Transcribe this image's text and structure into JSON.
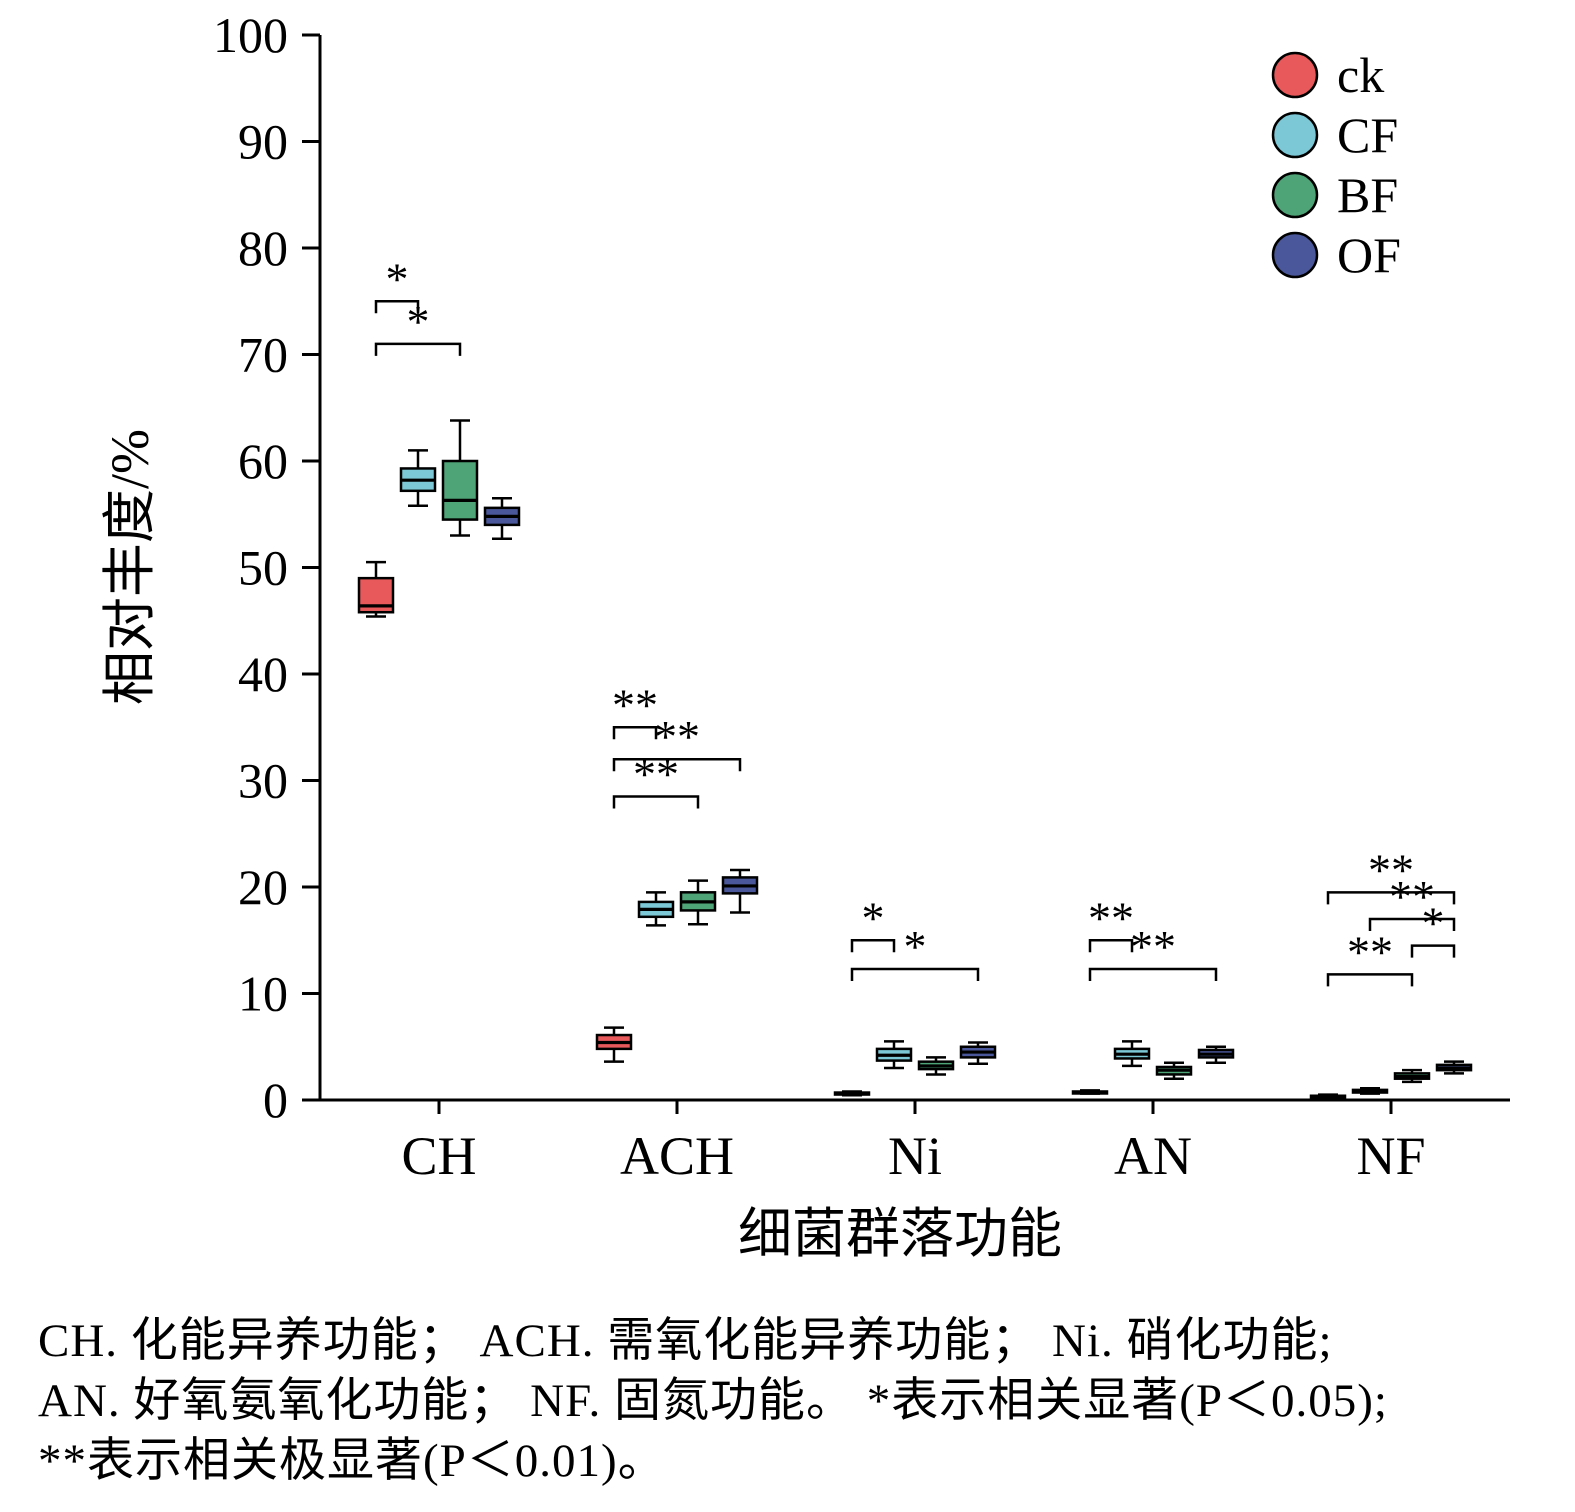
{
  "chart_data": {
    "type": "boxplot",
    "title": "",
    "ylabel": "相对丰度/%",
    "xlabel": "细菌群落功能",
    "ylim": [
      0,
      100
    ],
    "yticks": [
      0,
      10,
      20,
      30,
      40,
      50,
      60,
      70,
      80,
      90,
      100
    ],
    "categories": [
      "CH",
      "ACH",
      "Ni",
      "AN",
      "NF"
    ],
    "grid": false,
    "legend_position": "top-right",
    "series": [
      {
        "name": "ck",
        "color": "#E8595B"
      },
      {
        "name": "CF",
        "color": "#7CC8D6"
      },
      {
        "name": "BF",
        "color": "#4EA377"
      },
      {
        "name": "OF",
        "color": "#4A589B"
      }
    ],
    "boxes": {
      "CH": {
        "ck": {
          "low": 45.4,
          "q1": 45.8,
          "median": 46.4,
          "q3": 49.0,
          "high": 50.5
        },
        "CF": {
          "low": 55.8,
          "q1": 57.2,
          "median": 58.2,
          "q3": 59.3,
          "high": 61.0
        },
        "BF": {
          "low": 53.0,
          "q1": 54.5,
          "median": 56.3,
          "q3": 60.0,
          "high": 63.8
        },
        "OF": {
          "low": 52.7,
          "q1": 54.0,
          "median": 54.8,
          "q3": 55.6,
          "high": 56.5
        }
      },
      "ACH": {
        "ck": {
          "low": 3.6,
          "q1": 4.8,
          "median": 5.4,
          "q3": 6.1,
          "high": 6.8
        },
        "CF": {
          "low": 16.4,
          "q1": 17.2,
          "median": 17.9,
          "q3": 18.6,
          "high": 19.5
        },
        "BF": {
          "low": 16.5,
          "q1": 17.8,
          "median": 18.6,
          "q3": 19.5,
          "high": 20.6
        },
        "OF": {
          "low": 17.6,
          "q1": 19.4,
          "median": 20.1,
          "q3": 20.9,
          "high": 21.6
        }
      },
      "Ni": {
        "ck": {
          "low": 0.45,
          "q1": 0.55,
          "median": 0.6,
          "q3": 0.7,
          "high": 0.8
        },
        "CF": {
          "low": 3.0,
          "q1": 3.7,
          "median": 4.2,
          "q3": 4.8,
          "high": 5.5
        },
        "BF": {
          "low": 2.4,
          "q1": 2.9,
          "median": 3.2,
          "q3": 3.6,
          "high": 4.0
        },
        "OF": {
          "low": 3.4,
          "q1": 4.0,
          "median": 4.5,
          "q3": 5.0,
          "high": 5.4
        }
      },
      "AN": {
        "ck": {
          "low": 0.6,
          "q1": 0.65,
          "median": 0.7,
          "q3": 0.8,
          "high": 0.9
        },
        "CF": {
          "low": 3.2,
          "q1": 3.9,
          "median": 4.3,
          "q3": 4.8,
          "high": 5.5
        },
        "BF": {
          "low": 2.0,
          "q1": 2.4,
          "median": 2.8,
          "q3": 3.1,
          "high": 3.5
        },
        "OF": {
          "low": 3.5,
          "q1": 4.0,
          "median": 4.3,
          "q3": 4.7,
          "high": 5.0
        }
      },
      "NF": {
        "ck": {
          "low": 0.2,
          "q1": 0.25,
          "median": 0.3,
          "q3": 0.4,
          "high": 0.5
        },
        "CF": {
          "low": 0.6,
          "q1": 0.7,
          "median": 0.8,
          "q3": 0.95,
          "high": 1.1
        },
        "BF": {
          "low": 1.7,
          "q1": 2.0,
          "median": 2.2,
          "q3": 2.5,
          "high": 2.8
        },
        "OF": {
          "low": 2.5,
          "q1": 2.8,
          "median": 3.0,
          "q3": 3.3,
          "high": 3.6
        }
      }
    },
    "significance_brackets": [
      {
        "category": "CH",
        "from": "ck",
        "to": "CF",
        "label": "*",
        "y": 75
      },
      {
        "category": "CH",
        "from": "ck",
        "to": "BF",
        "label": "*",
        "y": 71
      },
      {
        "category": "ACH",
        "from": "ck",
        "to": "CF",
        "label": "**",
        "y": 35
      },
      {
        "category": "ACH",
        "from": "ck",
        "to": "OF",
        "label": "**",
        "y": 32
      },
      {
        "category": "ACH",
        "from": "ck",
        "to": "BF",
        "label": "**",
        "y": 28.5
      },
      {
        "category": "Ni",
        "from": "ck",
        "to": "CF",
        "label": "*",
        "y": 15
      },
      {
        "category": "Ni",
        "from": "ck",
        "to": "OF",
        "label": "*",
        "y": 12.3
      },
      {
        "category": "AN",
        "from": "ck",
        "to": "CF",
        "label": "**",
        "y": 15
      },
      {
        "category": "AN",
        "from": "ck",
        "to": "OF",
        "label": "**",
        "y": 12.3
      },
      {
        "category": "NF",
        "from": "ck",
        "to": "OF",
        "label": "**",
        "y": 19.5
      },
      {
        "category": "NF",
        "from": "CF",
        "to": "OF",
        "label": "**",
        "y": 17
      },
      {
        "category": "NF",
        "from": "BF",
        "to": "OF",
        "label": "*",
        "y": 14.5
      },
      {
        "category": "NF",
        "from": "ck",
        "to": "BF",
        "label": "**",
        "y": 11.8
      }
    ]
  },
  "captions": {
    "line1": "CH. 化能异养功能； ACH. 需氧化能异养功能； Ni. 硝化功能;",
    "line2": "AN. 好氧氨氧化功能； NF. 固氮功能。 *表示相关显著(P＜0.05);",
    "line3": "**表示相关极显著(P＜0.01)。"
  }
}
